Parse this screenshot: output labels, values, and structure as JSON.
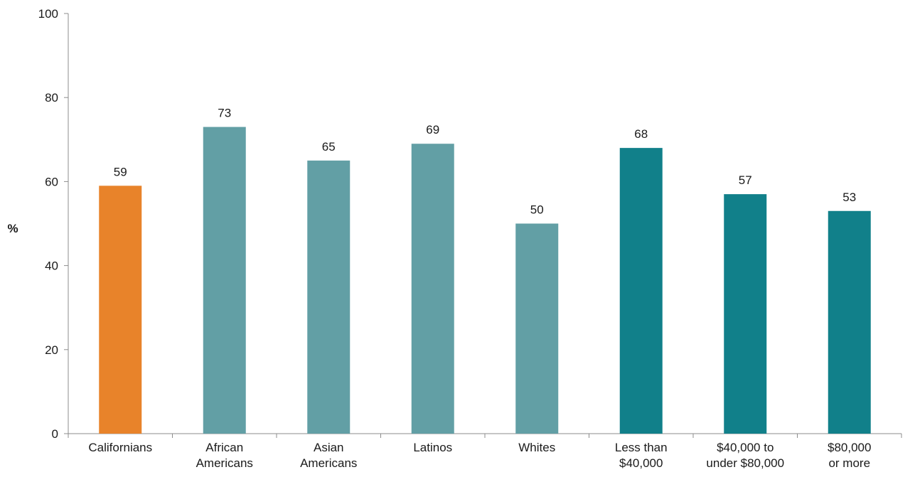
{
  "chart_data": {
    "type": "bar",
    "title": "",
    "xlabel": "",
    "ylabel": "%",
    "ylim": [
      0,
      100
    ],
    "yticks": [
      0,
      20,
      40,
      60,
      80,
      100
    ],
    "grid": false,
    "legend": "none",
    "categories": [
      [
        "Californians"
      ],
      [
        "African",
        "Americans"
      ],
      [
        "Asian",
        "Americans"
      ],
      [
        "Latinos"
      ],
      [
        "Whites"
      ],
      [
        "Less than",
        "$40,000"
      ],
      [
        "$40,000 to",
        "under $80,000"
      ],
      [
        "$80,000",
        "or more"
      ]
    ],
    "values": [
      59,
      73,
      65,
      69,
      50,
      68,
      57,
      53
    ],
    "colors": [
      "#e8832a",
      "#629fa5",
      "#629fa5",
      "#629fa5",
      "#629fa5",
      "#11808a",
      "#11808a",
      "#11808a"
    ]
  }
}
